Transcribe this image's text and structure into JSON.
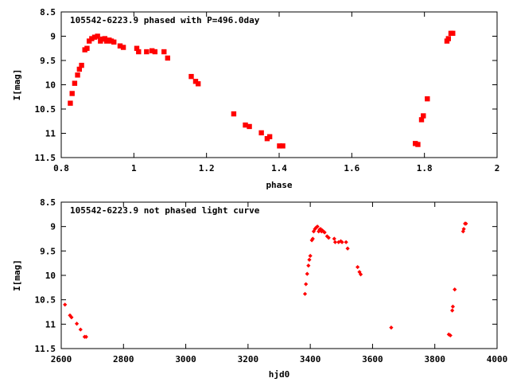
{
  "chart_data": [
    {
      "type": "scatter",
      "title": "105542-6223.9 phased with P=496.0day",
      "xlabel": "phase",
      "ylabel": "I[mag]",
      "xlim": [
        0.8,
        2.0
      ],
      "ylim": [
        11.5,
        8.5
      ],
      "y_inverted": true,
      "xticks": [
        "0.8",
        "1",
        "1.2",
        "1.4",
        "1.6",
        "1.8",
        "2"
      ],
      "yticks": [
        "8.5",
        "9",
        "9.5",
        "10",
        "10.5",
        "11",
        "11.5"
      ],
      "marker_color": "#ff0000",
      "series": [
        {
          "points": [
            [
              0.825,
              10.38
            ],
            [
              0.83,
              10.18
            ],
            [
              0.837,
              9.97
            ],
            [
              0.845,
              9.8
            ],
            [
              0.85,
              9.68
            ],
            [
              0.856,
              9.6
            ],
            [
              0.865,
              9.28
            ],
            [
              0.871,
              9.25
            ],
            [
              0.877,
              9.1
            ],
            [
              0.884,
              9.05
            ],
            [
              0.892,
              9.02
            ],
            [
              0.9,
              9.0
            ],
            [
              0.908,
              9.1
            ],
            [
              0.914,
              9.06
            ],
            [
              0.92,
              9.05
            ],
            [
              0.925,
              9.1
            ],
            [
              0.932,
              9.08
            ],
            [
              0.938,
              9.1
            ],
            [
              0.945,
              9.12
            ],
            [
              0.962,
              9.2
            ],
            [
              0.971,
              9.23
            ],
            [
              1.008,
              9.25
            ],
            [
              1.013,
              9.32
            ],
            [
              1.035,
              9.32
            ],
            [
              1.05,
              9.3
            ],
            [
              1.058,
              9.32
            ],
            [
              1.083,
              9.32
            ],
            [
              1.093,
              9.45
            ],
            [
              1.158,
              9.83
            ],
            [
              1.17,
              9.93
            ],
            [
              1.177,
              9.98
            ],
            [
              1.275,
              10.6
            ],
            [
              1.307,
              10.83
            ],
            [
              1.318,
              10.86
            ],
            [
              1.351,
              10.99
            ],
            [
              1.367,
              11.11
            ],
            [
              1.374,
              11.07
            ],
            [
              1.401,
              11.26
            ],
            [
              1.41,
              11.26
            ],
            [
              1.775,
              11.21
            ],
            [
              1.782,
              11.23
            ],
            [
              1.792,
              10.72
            ],
            [
              1.797,
              10.64
            ],
            [
              1.808,
              10.29
            ],
            [
              1.862,
              9.1
            ],
            [
              1.866,
              9.05
            ],
            [
              1.873,
              8.94
            ],
            [
              1.878,
              8.94
            ]
          ]
        }
      ]
    },
    {
      "type": "scatter",
      "title": "105542-6223.9 not phased light curve",
      "xlabel": "hjd0",
      "ylabel": "I[mag]",
      "xlim": [
        2600,
        4000
      ],
      "ylim": [
        11.5,
        8.5
      ],
      "y_inverted": true,
      "xticks": [
        "2600",
        "2800",
        "3000",
        "3200",
        "3400",
        "3600",
        "3800",
        "4000"
      ],
      "yticks": [
        "8.5",
        "9",
        "9.5",
        "10",
        "10.5",
        "11",
        "11.5"
      ],
      "marker_color": "#ff0000",
      "series": [
        {
          "points": [
            [
              2612,
              10.6
            ],
            [
              2628,
              10.82
            ],
            [
              2633,
              10.86
            ],
            [
              2650,
              10.99
            ],
            [
              2662,
              11.11
            ],
            [
              2675,
              11.26
            ],
            [
              2680,
              11.26
            ],
            [
              3383,
              10.38
            ],
            [
              3386,
              10.18
            ],
            [
              3390,
              9.97
            ],
            [
              3394,
              9.8
            ],
            [
              3397,
              9.68
            ],
            [
              3400,
              9.6
            ],
            [
              3405,
              9.28
            ],
            [
              3408,
              9.25
            ],
            [
              3411,
              9.1
            ],
            [
              3415,
              9.05
            ],
            [
              3419,
              9.02
            ],
            [
              3423,
              9.0
            ],
            [
              3427,
              9.1
            ],
            [
              3430,
              9.06
            ],
            [
              3433,
              9.05
            ],
            [
              3436,
              9.1
            ],
            [
              3439,
              9.08
            ],
            [
              3442,
              9.1
            ],
            [
              3446,
              9.12
            ],
            [
              3454,
              9.2
            ],
            [
              3459,
              9.23
            ],
            [
              3477,
              9.25
            ],
            [
              3480,
              9.32
            ],
            [
              3491,
              9.32
            ],
            [
              3498,
              9.3
            ],
            [
              3502,
              9.32
            ],
            [
              3515,
              9.32
            ],
            [
              3520,
              9.45
            ],
            [
              3552,
              9.83
            ],
            [
              3558,
              9.93
            ],
            [
              3562,
              9.98
            ],
            [
              3660,
              11.07
            ],
            [
              3845,
              11.21
            ],
            [
              3850,
              11.23
            ],
            [
              3856,
              10.72
            ],
            [
              3858,
              10.64
            ],
            [
              3864,
              10.29
            ],
            [
              3891,
              9.1
            ],
            [
              3893,
              9.05
            ],
            [
              3897,
              8.94
            ],
            [
              3900,
              8.94
            ]
          ]
        }
      ]
    }
  ]
}
